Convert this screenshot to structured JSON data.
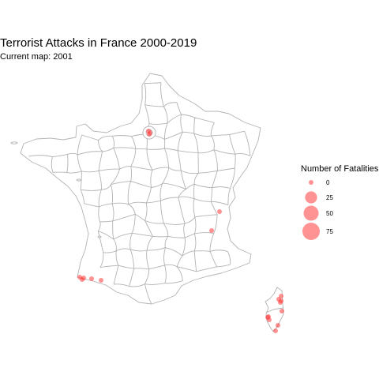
{
  "title": "Terrorist Attacks in France 2000-2019",
  "subtitle": "Current map: 2001",
  "colors": {
    "background": "#ffffff",
    "department_border": "#b3b3b3",
    "department_fill": "#ffffff",
    "attack_point": "#ff3b3b"
  },
  "legend": {
    "title": "Number of Fatalities",
    "items": [
      {
        "label": "0",
        "value": 0
      },
      {
        "label": "25",
        "value": 25
      },
      {
        "label": "50",
        "value": 50
      },
      {
        "label": "75",
        "value": 75
      }
    ]
  },
  "chart_data": {
    "type": "scatter",
    "title": "Terrorist Attacks in France 2000-2019",
    "subtitle": "Current map: 2001",
    "size_variable": "Number of Fatalities",
    "points": [
      {
        "region": "Paris",
        "fatalities": 0
      },
      {
        "region": "Paris",
        "fatalities": 0
      },
      {
        "region": "Paris",
        "fatalities": 0
      },
      {
        "region": "Isere",
        "fatalities": 0
      },
      {
        "region": "Drome",
        "fatalities": 0
      },
      {
        "region": "Pyrenees-Atlantiques",
        "fatalities": 0
      },
      {
        "region": "Pyrenees-Atlantiques",
        "fatalities": 0
      },
      {
        "region": "Pyrenees-Atlantiques",
        "fatalities": 0
      },
      {
        "region": "Pyrenees-Atlantiques",
        "fatalities": 0
      },
      {
        "region": "Pyrenees-Atlantiques",
        "fatalities": 0
      },
      {
        "region": "Haute-Corse",
        "fatalities": 0
      },
      {
        "region": "Haute-Corse",
        "fatalities": 0
      },
      {
        "region": "Haute-Corse",
        "fatalities": 0
      },
      {
        "region": "Haute-Corse",
        "fatalities": 0
      },
      {
        "region": "Haute-Corse",
        "fatalities": 0
      },
      {
        "region": "Corse-du-Sud",
        "fatalities": 0
      },
      {
        "region": "Corse-du-Sud",
        "fatalities": 0
      },
      {
        "region": "Corse-du-Sud",
        "fatalities": 0
      },
      {
        "region": "Corse-du-Sud",
        "fatalities": 0
      },
      {
        "region": "Corse-du-Sud",
        "fatalities": 0
      }
    ]
  }
}
